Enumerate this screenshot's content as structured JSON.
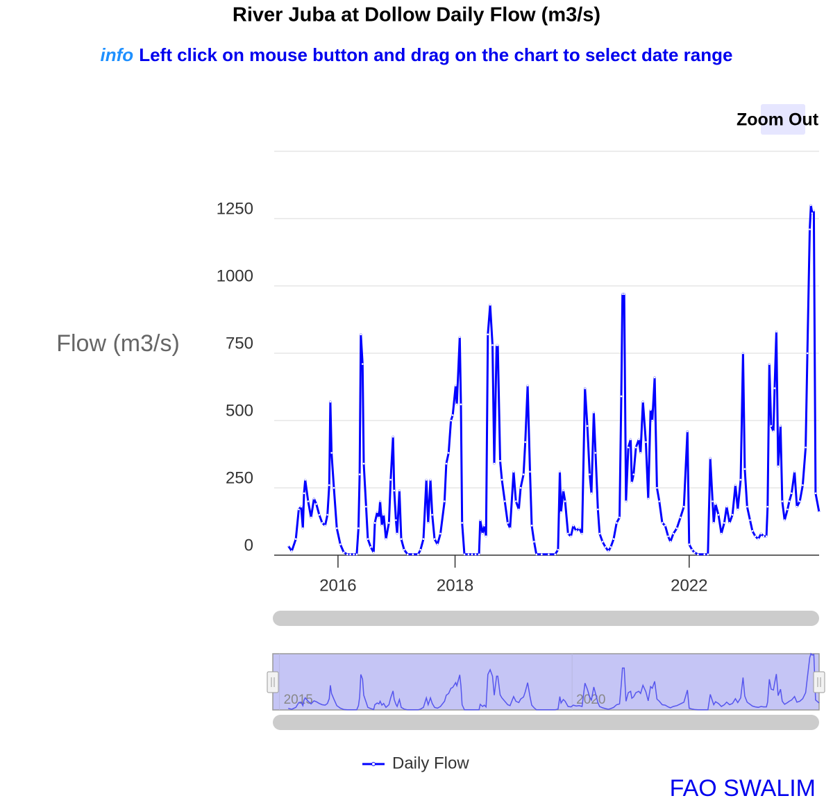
{
  "chart_data": {
    "type": "line",
    "title": "River Juba at Dollow Daily Flow (m3/s)",
    "info_label": "info",
    "info_text": "Left click on mouse button and drag on the chart to select date range",
    "button": "Zoom Out",
    "y_label": "Flow (m3/s)",
    "credit": "FAO SWALIM",
    "xlim": [
      2014.91,
      2024.22
    ],
    "xticks": [
      2016,
      2018,
      2022
    ],
    "ylim": [
      0,
      1500
    ],
    "yticks": [
      0,
      250,
      500,
      750,
      1000,
      1250
    ],
    "grid": true,
    "legend": "bottom",
    "navigator": {
      "xticks": [
        2015,
        2020
      ],
      "ylim": [
        0,
        1300
      ]
    },
    "x": [
      2015.15,
      2015.21,
      2015.28,
      2015.33,
      2015.37,
      2015.4,
      2015.42,
      2015.44,
      2015.49,
      2015.54,
      2015.59,
      2015.63,
      2015.68,
      2015.73,
      2015.78,
      2015.82,
      2015.85,
      2015.87,
      2015.89,
      2015.93,
      2015.98,
      2016.04,
      2016.1,
      2016.16,
      2016.21,
      2016.27,
      2016.32,
      2016.35,
      2016.37,
      2016.39,
      2016.42,
      2016.44,
      2016.48,
      2016.51,
      2016.56,
      2016.61,
      2016.63,
      2016.67,
      2016.7,
      2016.72,
      2016.75,
      2016.78,
      2016.82,
      2016.87,
      2016.9,
      2016.94,
      2016.96,
      2016.99,
      2017.01,
      2017.05,
      2017.08,
      2017.13,
      2017.19,
      2017.28,
      2017.37,
      2017.41,
      2017.46,
      2017.51,
      2017.54,
      2017.58,
      2017.61,
      2017.65,
      2017.7,
      2017.75,
      2017.82,
      2017.85,
      2017.89,
      2017.93,
      2017.96,
      2018.01,
      2018.03,
      2018.08,
      2018.1,
      2018.12,
      2018.16,
      2018.23,
      2018.29,
      2018.35,
      2018.41,
      2018.43,
      2018.47,
      2018.5,
      2018.53,
      2018.56,
      2018.6,
      2018.64,
      2018.67,
      2018.71,
      2018.73,
      2018.77,
      2018.8,
      2018.85,
      2018.9,
      2018.94,
      2019.0,
      2019.04,
      2019.09,
      2019.12,
      2019.17,
      2019.2,
      2019.24,
      2019.28,
      2019.31,
      2019.35,
      2019.39,
      2019.48,
      2019.6,
      2019.71,
      2019.76,
      2019.79,
      2019.81,
      2019.85,
      2019.88,
      2019.93,
      2019.98,
      2020.02,
      2020.07,
      2020.12,
      2020.17,
      2020.22,
      2020.26,
      2020.3,
      2020.33,
      2020.37,
      2020.4,
      2020.44,
      2020.47,
      2020.52,
      2020.57,
      2020.62,
      2020.66,
      2020.71,
      2020.76,
      2020.81,
      2020.84,
      2020.86,
      2020.89,
      2020.92,
      2020.96,
      2021.0,
      2021.02,
      2021.05,
      2021.09,
      2021.14,
      2021.17,
      2021.21,
      2021.26,
      2021.3,
      2021.34,
      2021.37,
      2021.41,
      2021.45,
      2021.49,
      2021.54,
      2021.59,
      2021.64,
      2021.68,
      2021.73,
      2021.79,
      2021.85,
      2021.91,
      2021.97,
      2022.0,
      2022.05,
      2022.09,
      2022.15,
      2022.26,
      2022.32,
      2022.36,
      2022.4,
      2022.42,
      2022.45,
      2022.5,
      2022.55,
      2022.6,
      2022.64,
      2022.69,
      2022.74,
      2022.79,
      2022.83,
      2022.88,
      2022.92,
      2022.95,
      2022.99,
      2023.04,
      2023.08,
      2023.13,
      2023.18,
      2023.23,
      2023.27,
      2023.32,
      2023.34,
      2023.37,
      2023.4,
      2023.44,
      2023.46,
      2023.49,
      2023.52,
      2023.56,
      2023.59,
      2023.63,
      2023.68,
      2023.71,
      2023.75,
      2023.8,
      2023.84,
      2023.89,
      2023.94,
      2023.99,
      2024.02,
      2024.06,
      2024.08,
      2024.1,
      2024.13,
      2024.16,
      2024.22
    ],
    "series": [
      {
        "name": "Daily Flow",
        "color": "#0000ff",
        "values": [
          35,
          15,
          60,
          170,
          180,
          100,
          230,
          280,
          200,
          140,
          210,
          190,
          150,
          120,
          110,
          150,
          260,
          570,
          380,
          250,
          100,
          40,
          10,
          3,
          3,
          3,
          3,
          100,
          300,
          820,
          710,
          340,
          180,
          60,
          30,
          10,
          120,
          160,
          140,
          200,
          110,
          150,
          60,
          120,
          280,
          440,
          240,
          130,
          80,
          240,
          60,
          20,
          3,
          3,
          3,
          20,
          60,
          280,
          120,
          280,
          150,
          60,
          40,
          80,
          200,
          340,
          380,
          500,
          520,
          630,
          560,
          810,
          560,
          120,
          3,
          3,
          3,
          3,
          3,
          130,
          80,
          110,
          70,
          820,
          930,
          780,
          340,
          780,
          780,
          350,
          280,
          200,
          120,
          100,
          310,
          200,
          170,
          250,
          300,
          420,
          630,
          310,
          110,
          50,
          3,
          3,
          3,
          3,
          20,
          310,
          160,
          240,
          200,
          80,
          70,
          110,
          90,
          100,
          80,
          620,
          480,
          300,
          230,
          530,
          380,
          170,
          80,
          50,
          30,
          15,
          30,
          60,
          120,
          140,
          590,
          970,
          970,
          200,
          400,
          430,
          270,
          300,
          400,
          430,
          380,
          570,
          420,
          210,
          540,
          500,
          660,
          250,
          200,
          120,
          110,
          70,
          50,
          80,
          100,
          140,
          180,
          460,
          40,
          20,
          10,
          3,
          3,
          3,
          360,
          200,
          120,
          190,
          150,
          80,
          120,
          180,
          120,
          150,
          260,
          170,
          280,
          750,
          320,
          180,
          130,
          90,
          70,
          60,
          80,
          70,
          70,
          180,
          710,
          480,
          460,
          620,
          830,
          330,
          480,
          200,
          130,
          170,
          200,
          230,
          310,
          180,
          200,
          260,
          400,
          750,
          1210,
          1300,
          1270,
          1280,
          230,
          160
        ]
      }
    ]
  }
}
